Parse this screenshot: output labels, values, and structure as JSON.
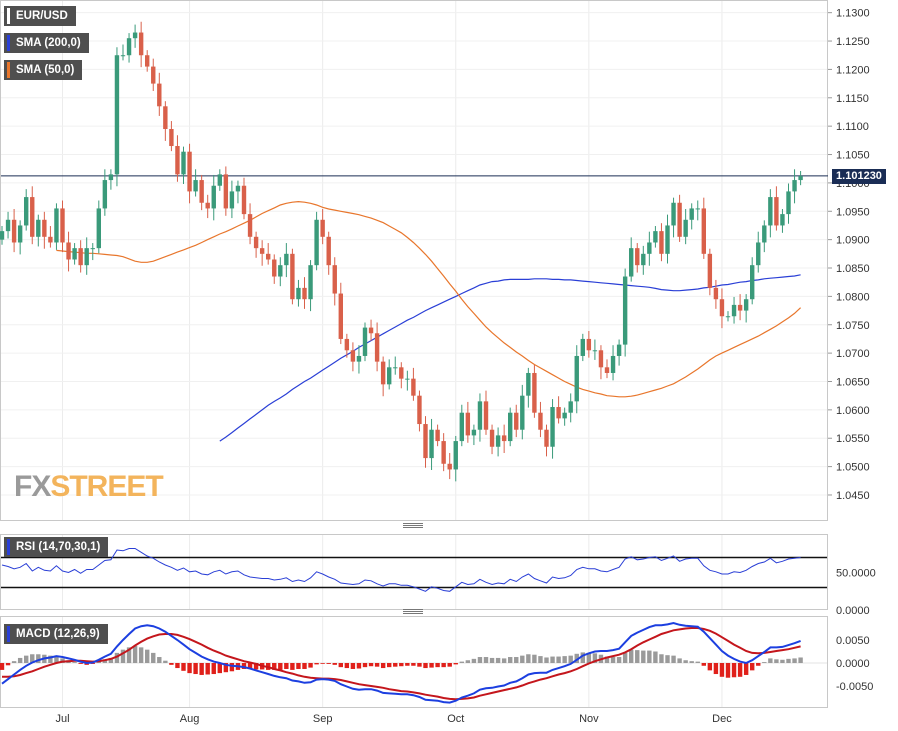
{
  "instrument": {
    "label": "EUR/USD",
    "color": "#ffffff"
  },
  "sma200": {
    "label": "SMA (200,0)",
    "color": "#2a3fd6"
  },
  "sma50": {
    "label": "SMA (50,0)",
    "color": "#e8762c"
  },
  "last_price": "1.101230",
  "watermark": {
    "fx": "FX",
    "street": "STREET"
  },
  "rsi_panel": {
    "label": "RSI (14,70,30,1)",
    "color": "#2a3fd6"
  },
  "macd_panel": {
    "label": "MACD (12,26,9)",
    "color": "#2a3fd6"
  },
  "chart_data": [
    {
      "type": "candlestick",
      "title": "EUR/USD",
      "x_labels": [
        "Jul",
        "Aug",
        "Sep",
        "Oct",
        "Nov",
        "Dec"
      ],
      "ylim": [
        1.042,
        1.131
      ],
      "y_ticks": [
        "1.1300",
        "1.1250",
        "1.1200",
        "1.1150",
        "1.1100",
        "1.1050",
        "1.1000",
        "1.0950",
        "1.0900",
        "1.0850",
        "1.0800",
        "1.0750",
        "1.0700",
        "1.0650",
        "1.0600",
        "1.0550",
        "1.0500",
        "1.0450"
      ],
      "last_price": 1.10123,
      "colors": {
        "up": "#3a9a7a",
        "down": "#d9604a"
      },
      "closes": [
        1.0915,
        1.0935,
        1.0895,
        1.0925,
        1.0975,
        1.0905,
        1.0935,
        1.0905,
        1.0895,
        1.0955,
        1.0895,
        1.0865,
        1.0885,
        1.0855,
        1.0885,
        1.0885,
        1.0955,
        1.1005,
        1.1015,
        1.1225,
        1.1225,
        1.1255,
        1.1265,
        1.1225,
        1.1205,
        1.1175,
        1.1135,
        1.1095,
        1.1065,
        1.1015,
        1.1055,
        1.0985,
        1.1005,
        1.0965,
        1.0955,
        1.0995,
        1.1015,
        1.0955,
        1.0985,
        1.0995,
        1.0945,
        1.0905,
        1.0885,
        1.0875,
        1.0865,
        1.0835,
        1.0855,
        1.0875,
        1.0795,
        1.0815,
        1.0795,
        1.0855,
        1.0935,
        1.0905,
        1.0855,
        1.0805,
        1.0725,
        1.0705,
        1.0685,
        1.0695,
        1.0745,
        1.0735,
        1.0685,
        1.0645,
        1.0675,
        1.0675,
        1.0655,
        1.0655,
        1.0625,
        1.0575,
        1.0515,
        1.0565,
        1.0545,
        1.0505,
        1.0495,
        1.0545,
        1.0595,
        1.0555,
        1.0565,
        1.0615,
        1.0565,
        1.0535,
        1.0555,
        1.0545,
        1.0595,
        1.0565,
        1.0625,
        1.0665,
        1.0595,
        1.0565,
        1.0535,
        1.0605,
        1.0585,
        1.0595,
        1.0615,
        1.0695,
        1.0725,
        1.0705,
        1.0705,
        1.0675,
        1.0665,
        1.0695,
        1.0715,
        1.0835,
        1.0885,
        1.0855,
        1.0875,
        1.0895,
        1.0915,
        1.0875,
        1.0925,
        1.0965,
        1.0905,
        1.0935,
        1.0955,
        1.0955,
        1.0875,
        1.0815,
        1.0795,
        1.0765,
        1.0765,
        1.0785,
        1.0775,
        1.0795,
        1.0855,
        1.0895,
        1.0925,
        1.0975,
        1.0925,
        1.0945,
        1.0985,
        1.1005,
        1.1012
      ],
      "sma200": [
        1.0545,
        1.0552,
        1.056,
        1.0568,
        1.0576,
        1.0584,
        1.0592,
        1.06,
        1.0608,
        1.0615,
        1.0621,
        1.0628,
        1.0636,
        1.0643,
        1.065,
        1.0656,
        1.0663,
        1.067,
        1.0677,
        1.0684,
        1.0691,
        1.0697,
        1.0703,
        1.071,
        1.0716,
        1.0722,
        1.0728,
        1.0734,
        1.074,
        1.0746,
        1.0752,
        1.0758,
        1.0763,
        1.0769,
        1.0775,
        1.078,
        1.0785,
        1.079,
        1.0795,
        1.08,
        1.0805,
        1.081,
        1.0815,
        1.082,
        1.0823,
        1.0826,
        1.0827,
        1.0829,
        1.083,
        1.083,
        1.083,
        1.083,
        1.0831,
        1.0831,
        1.0831,
        1.083,
        1.083,
        1.0829,
        1.0829,
        1.0828,
        1.0827,
        1.0826,
        1.0825,
        1.0824,
        1.0823,
        1.0822,
        1.0821,
        1.082,
        1.0819,
        1.0818,
        1.0817,
        1.0816,
        1.0814,
        1.0812,
        1.0811,
        1.081,
        1.081,
        1.0811,
        1.0812,
        1.0813,
        1.0815,
        1.0816,
        1.0818,
        1.082,
        1.0821,
        1.0823,
        1.0825,
        1.0826,
        1.0828,
        1.0829,
        1.0831,
        1.0832,
        1.0833,
        1.0834,
        1.0835,
        1.0836,
        1.0838
      ],
      "sma50": [
        1.0881,
        1.088,
        1.0879,
        1.0878,
        1.0877,
        1.0876,
        1.0876,
        1.0875,
        1.0874,
        1.0873,
        1.0872,
        1.087,
        1.0866,
        1.0862,
        1.086,
        1.086,
        1.0862,
        1.0866,
        1.087,
        1.0874,
        1.0878,
        1.0882,
        1.0886,
        1.089,
        1.0895,
        1.09,
        1.0905,
        1.091,
        1.0914,
        1.0919,
        1.0924,
        1.0929,
        1.0934,
        1.094,
        1.0946,
        1.0951,
        1.0956,
        1.0961,
        1.0964,
        1.0966,
        1.0967,
        1.0966,
        1.0964,
        1.0961,
        1.0957,
        1.0954,
        1.0952,
        1.095,
        1.0948,
        1.0946,
        1.0944,
        1.0941,
        1.0938,
        1.0934,
        1.093,
        1.0924,
        1.0918,
        1.0912,
        1.0904,
        1.0895,
        1.0885,
        1.0874,
        1.0862,
        1.0849,
        1.0836,
        1.0822,
        1.0809,
        1.0795,
        1.0782,
        1.077,
        1.0758,
        1.0746,
        1.0736,
        1.0727,
        1.0718,
        1.071,
        1.0702,
        1.0695,
        1.0687,
        1.068,
        1.0674,
        1.0668,
        1.0662,
        1.0656,
        1.065,
        1.0645,
        1.064,
        1.0636,
        1.0633,
        1.063,
        1.0628,
        1.0625,
        1.0624,
        1.0623,
        1.0623,
        1.0624,
        1.0626,
        1.0629,
        1.0632,
        1.0635,
        1.0638,
        1.0642,
        1.0646,
        1.0652,
        1.0658,
        1.0665,
        1.0672,
        1.068,
        1.0688,
        1.0695,
        1.07,
        1.0705,
        1.071,
        1.0715,
        1.072,
        1.0725,
        1.073,
        1.0736,
        1.0742,
        1.0748,
        1.0755,
        1.0762,
        1.077,
        1.078
      ]
    },
    {
      "type": "line",
      "title": "RSI (14,70,30,1)",
      "y_ticks": [
        "50.0000",
        "0.0000"
      ],
      "levels": [
        70,
        30
      ],
      "values": [
        60,
        58,
        55,
        57,
        62,
        52,
        57,
        53,
        52,
        59,
        52,
        50,
        54,
        49,
        54,
        54,
        60,
        66,
        67,
        80,
        79,
        82,
        82,
        77,
        72,
        69,
        64,
        60,
        57,
        53,
        56,
        51,
        52,
        48,
        47,
        51,
        53,
        48,
        51,
        52,
        47,
        44,
        43,
        42,
        42,
        40,
        41,
        43,
        38,
        40,
        38,
        43,
        51,
        48,
        44,
        41,
        36,
        35,
        34,
        35,
        40,
        39,
        35,
        32,
        35,
        35,
        33,
        33,
        31,
        28,
        25,
        31,
        29,
        26,
        25,
        31,
        37,
        34,
        35,
        41,
        37,
        34,
        36,
        35,
        41,
        38,
        44,
        48,
        42,
        39,
        36,
        44,
        42,
        43,
        46,
        54,
        57,
        55,
        55,
        52,
        51,
        54,
        57,
        68,
        71,
        67,
        68,
        70,
        71,
        66,
        69,
        72,
        65,
        68,
        69,
        69,
        59,
        53,
        51,
        48,
        48,
        51,
        50,
        53,
        58,
        62,
        64,
        69,
        63,
        65,
        68,
        69,
        70
      ]
    },
    {
      "type": "bar+line",
      "title": "MACD (12,26,9)",
      "y_ticks": [
        "0.0050",
        "0.0000",
        "-0.0050"
      ],
      "macd": [
        -0.0045,
        -0.0035,
        -0.0025,
        -0.0015,
        -0.0006,
        0.0001,
        0.0006,
        0.001,
        0.0012,
        0.0015,
        0.0013,
        0.001,
        0.0007,
        0.0003,
        0.0,
        0.0001,
        0.0007,
        0.0014,
        0.002,
        0.0036,
        0.005,
        0.0063,
        0.0075,
        0.008,
        0.0082,
        0.008,
        0.0075,
        0.0068,
        0.0059,
        0.005,
        0.004,
        0.003,
        0.0022,
        0.0014,
        0.0008,
        0.0003,
        0.0,
        -0.0004,
        -0.0006,
        -0.0007,
        -0.0009,
        -0.0012,
        -0.0016,
        -0.002,
        -0.0024,
        -0.0028,
        -0.0031,
        -0.0033,
        -0.0038,
        -0.004,
        -0.0043,
        -0.0042,
        -0.0036,
        -0.0035,
        -0.0036,
        -0.0039,
        -0.0046,
        -0.0051,
        -0.0056,
        -0.0058,
        -0.0057,
        -0.0057,
        -0.006,
        -0.0065,
        -0.0066,
        -0.0067,
        -0.0068,
        -0.0068,
        -0.007,
        -0.0074,
        -0.008,
        -0.0081,
        -0.0082,
        -0.0085,
        -0.0086,
        -0.0082,
        -0.0075,
        -0.0071,
        -0.0066,
        -0.0058,
        -0.0055,
        -0.0054,
        -0.0051,
        -0.0049,
        -0.0043,
        -0.004,
        -0.0033,
        -0.0025,
        -0.0022,
        -0.0021,
        -0.0021,
        -0.0015,
        -0.0011,
        -0.0007,
        -0.0002,
        0.0007,
        0.0016,
        0.0021,
        0.0025,
        0.0026,
        0.0026,
        0.0028,
        0.0031,
        0.0045,
        0.0059,
        0.0066,
        0.0072,
        0.0078,
        0.0082,
        0.0082,
        0.0084,
        0.0087,
        0.0083,
        0.0081,
        0.008,
        0.0079,
        0.0068,
        0.0054,
        0.004,
        0.0026,
        0.0016,
        0.0009,
        0.0003,
        0.0,
        0.0006,
        0.0015,
        0.0024,
        0.0034,
        0.0034,
        0.0035,
        0.0039,
        0.0043,
        0.0048
      ],
      "signal": [
        -0.003,
        -0.003,
        -0.0029,
        -0.0026,
        -0.0022,
        -0.0018,
        -0.0013,
        -0.0008,
        -0.0004,
        0.0,
        0.0003,
        0.0004,
        0.0005,
        0.0005,
        0.0004,
        0.0003,
        0.0004,
        0.0006,
        0.0009,
        0.0014,
        0.0021,
        0.0029,
        0.0038,
        0.0046,
        0.0053,
        0.0058,
        0.0062,
        0.0063,
        0.0063,
        0.0061,
        0.0057,
        0.0052,
        0.0046,
        0.004,
        0.0033,
        0.0027,
        0.0022,
        0.0016,
        0.0012,
        0.0008,
        0.0004,
        0.0001,
        -0.0002,
        -0.0006,
        -0.0009,
        -0.0013,
        -0.0016,
        -0.002,
        -0.0023,
        -0.0027,
        -0.003,
        -0.0032,
        -0.0033,
        -0.0034,
        -0.0034,
        -0.0035,
        -0.0037,
        -0.004,
        -0.0043,
        -0.0046,
        -0.0048,
        -0.005,
        -0.0052,
        -0.0054,
        -0.0057,
        -0.0059,
        -0.0061,
        -0.0062,
        -0.0064,
        -0.0066,
        -0.0069,
        -0.0071,
        -0.0073,
        -0.0076,
        -0.0078,
        -0.0079,
        -0.0078,
        -0.0077,
        -0.0075,
        -0.0071,
        -0.0068,
        -0.0065,
        -0.0062,
        -0.0059,
        -0.0056,
        -0.0053,
        -0.0049,
        -0.0044,
        -0.004,
        -0.0036,
        -0.0033,
        -0.0029,
        -0.0025,
        -0.0022,
        -0.0018,
        -0.0013,
        -0.0007,
        -0.0001,
        0.0004,
        0.0008,
        0.0012,
        0.0015,
        0.0018,
        0.0023,
        0.003,
        0.0038,
        0.0045,
        0.0051,
        0.0057,
        0.0063,
        0.0067,
        0.0071,
        0.0073,
        0.0075,
        0.0076,
        0.0076,
        0.0074,
        0.007,
        0.0064,
        0.0056,
        0.0048,
        0.004,
        0.0033,
        0.0026,
        0.0022,
        0.0021,
        0.0022,
        0.0024,
        0.0026,
        0.0028,
        0.003,
        0.0033,
        0.0036
      ]
    }
  ]
}
